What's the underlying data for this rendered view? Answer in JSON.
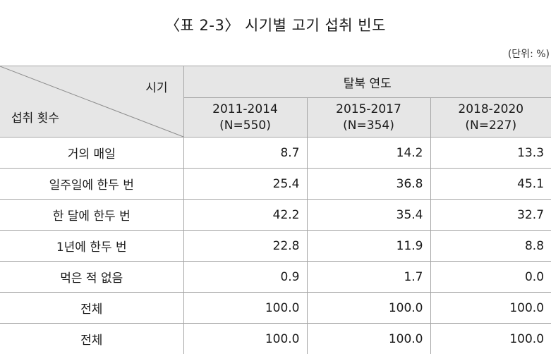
{
  "title": "〈표 2-3〉 시기별 고기 섭취 빈도",
  "unit": "(단위: %)",
  "header": {
    "corner_top": "시기",
    "corner_bottom": "섭취 횟수",
    "group": "탈북 연도",
    "periods": [
      {
        "range": "2011-2014",
        "n": "(N=550)"
      },
      {
        "range": "2015-2017",
        "n": "(N=354)"
      },
      {
        "range": "2018-2020",
        "n": "(N=227)"
      }
    ]
  },
  "rows": [
    {
      "label": "거의 매일",
      "values": [
        "8.7",
        "14.2",
        "13.3"
      ]
    },
    {
      "label": "일주일에 한두 번",
      "values": [
        "25.4",
        "36.8",
        "45.1"
      ]
    },
    {
      "label": "한 달에 한두 번",
      "values": [
        "42.2",
        "35.4",
        "32.7"
      ]
    },
    {
      "label": "1년에 한두 번",
      "values": [
        "22.8",
        "11.9",
        "8.8"
      ]
    },
    {
      "label": "먹은 적 없음",
      "values": [
        "0.9",
        "1.7",
        "0.0"
      ]
    },
    {
      "label": "전체",
      "values": [
        "100.0",
        "100.0",
        "100.0"
      ]
    },
    {
      "label": "전체",
      "values": [
        "100.0",
        "100.0",
        "100.0"
      ]
    }
  ]
}
